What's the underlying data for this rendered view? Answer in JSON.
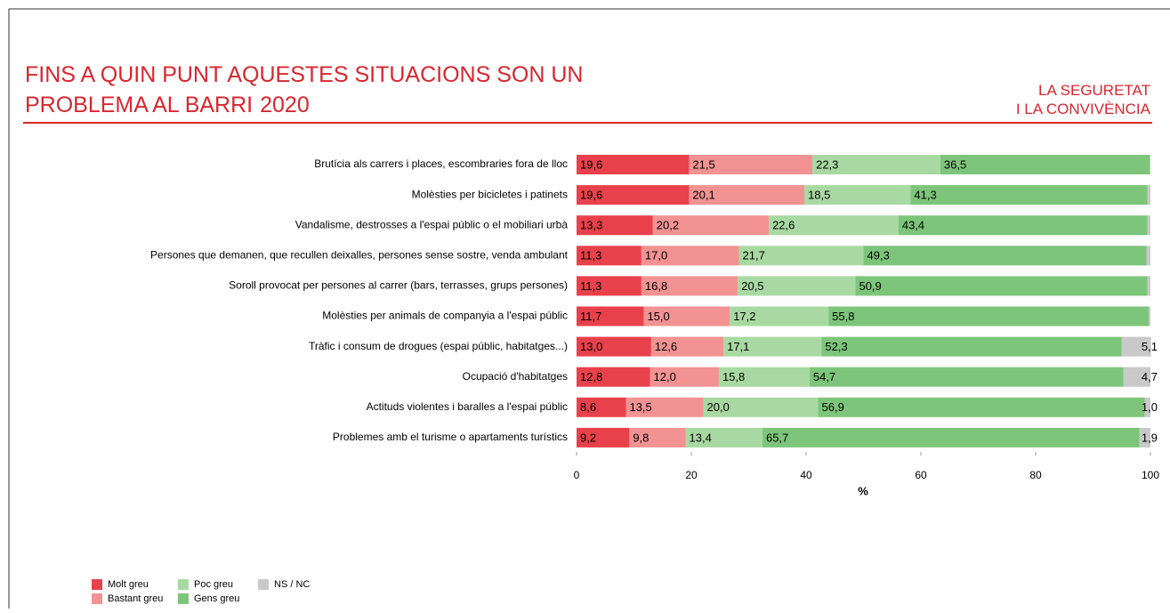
{
  "chart_data": {
    "type": "stacked-bar-horizontal",
    "title_lines": [
      "FINS A QUIN PUNT AQUESTES SITUACIONS SON UN",
      "PROBLEMA  AL BARRI"
    ],
    "title_year": "2020",
    "section": [
      "LA SEGURETAT",
      "I LA CONVIVÈNCIA"
    ],
    "xlabel": "%",
    "xlim": [
      0,
      100
    ],
    "xticks": [
      0,
      20,
      40,
      60,
      80,
      100
    ],
    "categories": [
      "Brutícia als carrers i places, escombraries fora de lloc",
      "Molèsties per bicicletes i patinets",
      "Vandalisme, destrosses a l'espai públic o el mobiliari urbà",
      "Persones que demanen, que recullen deixalles, persones sense sostre, venda ambulant",
      "Soroll provocat per persones al carrer (bars, terrasses, grups persones)",
      "Molèsties per animals de companyia a l'espai públic",
      "Tràfic i consum de drogues (espai públic, habitatges...)",
      "Ocupació d'habitatges",
      "Actituds violentes i baralles a l'espai públic",
      "Problemes amb el turisme o apartaments turístics"
    ],
    "series": [
      {
        "name": "Molt greu",
        "color": "#e8414b",
        "values": [
          19.6,
          19.6,
          13.3,
          11.3,
          11.3,
          11.7,
          13.0,
          12.8,
          8.6,
          9.2
        ],
        "value_labels": [
          "19,6",
          "19,6",
          "13,3",
          "11,3",
          "11,3",
          "11,7",
          "13,0",
          "12,8",
          "8,6",
          "9,2"
        ]
      },
      {
        "name": "Bastant greu",
        "color": "#f29292",
        "values": [
          21.5,
          20.1,
          20.2,
          17.0,
          16.8,
          15.0,
          12.6,
          12.0,
          13.5,
          9.8
        ],
        "value_labels": [
          "21,5",
          "20,1",
          "20,2",
          "17,0",
          "16,8",
          "15,0",
          "12,6",
          "12,0",
          "13,5",
          "9,8"
        ]
      },
      {
        "name": "Poc greu",
        "color": "#a9d9a2",
        "values": [
          22.3,
          18.5,
          22.6,
          21.7,
          20.5,
          17.2,
          17.1,
          15.8,
          20.0,
          13.4
        ],
        "value_labels": [
          "22,3",
          "18,5",
          "22,6",
          "21,7",
          "20,5",
          "17,2",
          "17,1",
          "15,8",
          "20,0",
          "13,4"
        ]
      },
      {
        "name": "Gens greu",
        "color": "#7dc57a",
        "values": [
          36.5,
          41.3,
          43.4,
          49.3,
          50.9,
          55.8,
          52.3,
          54.7,
          56.9,
          65.7
        ],
        "value_labels": [
          "36,5",
          "41,3",
          "43,4",
          "49,3",
          "50,9",
          "55,8",
          "52,3",
          "54,7",
          "56,9",
          "65,7"
        ]
      },
      {
        "name": "NS / NC",
        "color": "#c9c9c9",
        "values": [
          0.1,
          0.5,
          0.5,
          0.7,
          0.5,
          0.3,
          5.1,
          4.7,
          1.0,
          1.9
        ],
        "value_labels": [
          null,
          null,
          null,
          null,
          null,
          null,
          "5,1",
          "4,7",
          "1,0",
          "1,9"
        ]
      }
    ]
  }
}
